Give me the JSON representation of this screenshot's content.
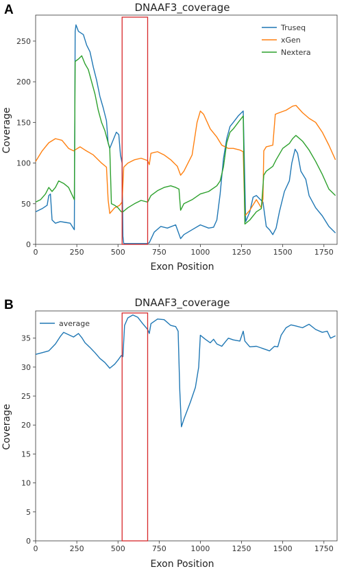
{
  "chart_data": [
    {
      "panel": "A",
      "type": "line",
      "title": "DNAAF3_coverage",
      "xlabel": "Exon Position",
      "ylabel": "Coverage",
      "xlim": [
        0,
        1830
      ],
      "ylim": [
        0,
        282
      ],
      "xticks": [
        0,
        250,
        500,
        750,
        1000,
        1250,
        1500,
        1750
      ],
      "yticks": [
        0,
        50,
        100,
        150,
        200,
        250
      ],
      "legend_position": "top-right",
      "highlight_box": {
        "x": [
          525,
          680
        ],
        "color": "#d62728"
      },
      "series": [
        {
          "name": "Truseq",
          "color": "#1f77b4",
          "points": [
            [
              0,
              40
            ],
            [
              40,
              44
            ],
            [
              70,
              48
            ],
            [
              80,
              60
            ],
            [
              90,
              62
            ],
            [
              100,
              30
            ],
            [
              120,
              26
            ],
            [
              150,
              28
            ],
            [
              180,
              27
            ],
            [
              210,
              26
            ],
            [
              235,
              18
            ],
            [
              240,
              262
            ],
            [
              245,
              270
            ],
            [
              260,
              262
            ],
            [
              290,
              258
            ],
            [
              310,
              245
            ],
            [
              330,
              237
            ],
            [
              350,
              218
            ],
            [
              370,
              202
            ],
            [
              390,
              182
            ],
            [
              410,
              168
            ],
            [
              430,
              152
            ],
            [
              440,
              125
            ],
            [
              450,
              118
            ],
            [
              470,
              128
            ],
            [
              490,
              138
            ],
            [
              505,
              135
            ],
            [
              515,
              110
            ],
            [
              525,
              100
            ],
            [
              530,
              10
            ],
            [
              535,
              1
            ],
            [
              680,
              1
            ],
            [
              690,
              2
            ],
            [
              720,
              15
            ],
            [
              760,
              22
            ],
            [
              800,
              20
            ],
            [
              850,
              24
            ],
            [
              880,
              7
            ],
            [
              900,
              12
            ],
            [
              950,
              18
            ],
            [
              1000,
              24
            ],
            [
              1050,
              20
            ],
            [
              1080,
              21
            ],
            [
              1100,
              30
            ],
            [
              1120,
              62
            ],
            [
              1140,
              105
            ],
            [
              1160,
              130
            ],
            [
              1180,
              145
            ],
            [
              1200,
              150
            ],
            [
              1230,
              158
            ],
            [
              1260,
              164
            ],
            [
              1275,
              28
            ],
            [
              1300,
              40
            ],
            [
              1320,
              58
            ],
            [
              1340,
              60
            ],
            [
              1360,
              56
            ],
            [
              1380,
              52
            ],
            [
              1400,
              22
            ],
            [
              1420,
              18
            ],
            [
              1440,
              12
            ],
            [
              1460,
              20
            ],
            [
              1480,
              40
            ],
            [
              1510,
              65
            ],
            [
              1540,
              78
            ],
            [
              1555,
              100
            ],
            [
              1575,
              117
            ],
            [
              1590,
              112
            ],
            [
              1610,
              90
            ],
            [
              1640,
              80
            ],
            [
              1660,
              60
            ],
            [
              1700,
              45
            ],
            [
              1740,
              35
            ],
            [
              1780,
              22
            ],
            [
              1820,
              14
            ]
          ]
        },
        {
          "name": "xGen",
          "color": "#ff7f0e",
          "points": [
            [
              0,
              102
            ],
            [
              40,
              115
            ],
            [
              80,
              125
            ],
            [
              120,
              130
            ],
            [
              160,
              128
            ],
            [
              200,
              118
            ],
            [
              230,
              115
            ],
            [
              270,
              120
            ],
            [
              300,
              116
            ],
            [
              350,
              110
            ],
            [
              400,
              100
            ],
            [
              430,
              95
            ],
            [
              440,
              55
            ],
            [
              450,
              38
            ],
            [
              480,
              45
            ],
            [
              510,
              48
            ],
            [
              525,
              52
            ],
            [
              535,
              95
            ],
            [
              560,
              100
            ],
            [
              600,
              104
            ],
            [
              640,
              106
            ],
            [
              680,
              103
            ],
            [
              690,
              98
            ],
            [
              700,
              112
            ],
            [
              740,
              114
            ],
            [
              780,
              110
            ],
            [
              820,
              104
            ],
            [
              860,
              96
            ],
            [
              880,
              85
            ],
            [
              900,
              90
            ],
            [
              950,
              110
            ],
            [
              980,
              150
            ],
            [
              1000,
              164
            ],
            [
              1020,
              160
            ],
            [
              1060,
              142
            ],
            [
              1100,
              132
            ],
            [
              1130,
              122
            ],
            [
              1150,
              120
            ],
            [
              1170,
              118
            ],
            [
              1200,
              118
            ],
            [
              1240,
              116
            ],
            [
              1260,
              114
            ],
            [
              1270,
              35
            ],
            [
              1300,
              42
            ],
            [
              1340,
              55
            ],
            [
              1370,
              45
            ],
            [
              1380,
              56
            ],
            [
              1385,
              115
            ],
            [
              1400,
              120
            ],
            [
              1440,
              122
            ],
            [
              1455,
              160
            ],
            [
              1480,
              162
            ],
            [
              1520,
              165
            ],
            [
              1560,
              170
            ],
            [
              1580,
              171
            ],
            [
              1620,
              162
            ],
            [
              1660,
              155
            ],
            [
              1700,
              150
            ],
            [
              1740,
              138
            ],
            [
              1780,
              122
            ],
            [
              1820,
              104
            ]
          ]
        },
        {
          "name": "Nextera",
          "color": "#2ca02c",
          "points": [
            [
              0,
              52
            ],
            [
              30,
              55
            ],
            [
              60,
              62
            ],
            [
              80,
              70
            ],
            [
              100,
              65
            ],
            [
              120,
              70
            ],
            [
              140,
              78
            ],
            [
              170,
              75
            ],
            [
              200,
              70
            ],
            [
              235,
              55
            ],
            [
              240,
              225
            ],
            [
              260,
              228
            ],
            [
              280,
              232
            ],
            [
              300,
              222
            ],
            [
              320,
              215
            ],
            [
              340,
              200
            ],
            [
              360,
              185
            ],
            [
              380,
              165
            ],
            [
              400,
              150
            ],
            [
              420,
              140
            ],
            [
              440,
              125
            ],
            [
              450,
              118
            ],
            [
              460,
              50
            ],
            [
              480,
              48
            ],
            [
              500,
              45
            ],
            [
              520,
              40
            ],
            [
              530,
              40
            ],
            [
              560,
              45
            ],
            [
              600,
              50
            ],
            [
              640,
              54
            ],
            [
              680,
              52
            ],
            [
              700,
              60
            ],
            [
              740,
              66
            ],
            [
              780,
              70
            ],
            [
              820,
              72
            ],
            [
              850,
              70
            ],
            [
              870,
              68
            ],
            [
              880,
              42
            ],
            [
              900,
              50
            ],
            [
              950,
              55
            ],
            [
              1000,
              62
            ],
            [
              1050,
              65
            ],
            [
              1100,
              72
            ],
            [
              1120,
              78
            ],
            [
              1140,
              95
            ],
            [
              1160,
              125
            ],
            [
              1180,
              138
            ],
            [
              1200,
              142
            ],
            [
              1230,
              150
            ],
            [
              1260,
              158
            ],
            [
              1270,
              25
            ],
            [
              1300,
              30
            ],
            [
              1340,
              40
            ],
            [
              1370,
              44
            ],
            [
              1385,
              85
            ],
            [
              1400,
              90
            ],
            [
              1440,
              96
            ],
            [
              1460,
              104
            ],
            [
              1500,
              118
            ],
            [
              1540,
              124
            ],
            [
              1560,
              130
            ],
            [
              1580,
              134
            ],
            [
              1620,
              127
            ],
            [
              1660,
              116
            ],
            [
              1700,
              102
            ],
            [
              1740,
              86
            ],
            [
              1780,
              68
            ],
            [
              1820,
              60
            ]
          ]
        }
      ]
    },
    {
      "panel": "B",
      "type": "line",
      "title": "DNAAF3_coverage",
      "xlabel": "Exon Position",
      "ylabel": "Coverage",
      "xlim": [
        0,
        1830
      ],
      "ylim": [
        0,
        39.7
      ],
      "xticks": [
        0,
        250,
        500,
        750,
        1000,
        1250,
        1500,
        1750
      ],
      "yticks": [
        0,
        5,
        10,
        15,
        20,
        25,
        30,
        35
      ],
      "legend_position": "top-left",
      "highlight_box": {
        "x": [
          525,
          680
        ],
        "color": "#d62728"
      },
      "series": [
        {
          "name": "average",
          "color": "#1f77b4",
          "points": [
            [
              0,
              32.2
            ],
            [
              40,
              32.5
            ],
            [
              80,
              32.8
            ],
            [
              120,
              34
            ],
            [
              150,
              35.3
            ],
            [
              170,
              36
            ],
            [
              200,
              35.6
            ],
            [
              230,
              35.2
            ],
            [
              260,
              35.8
            ],
            [
              280,
              35.1
            ],
            [
              300,
              34.2
            ],
            [
              330,
              33.4
            ],
            [
              360,
              32.5
            ],
            [
              390,
              31.5
            ],
            [
              420,
              30.8
            ],
            [
              450,
              29.8
            ],
            [
              480,
              30.5
            ],
            [
              500,
              31.2
            ],
            [
              520,
              32
            ],
            [
              530,
              31.8
            ],
            [
              540,
              37.2
            ],
            [
              560,
              38.5
            ],
            [
              590,
              39
            ],
            [
              620,
              38.6
            ],
            [
              650,
              37.5
            ],
            [
              680,
              36.5
            ],
            [
              690,
              35.8
            ],
            [
              700,
              37.5
            ],
            [
              740,
              38.3
            ],
            [
              780,
              38.2
            ],
            [
              820,
              37.2
            ],
            [
              850,
              37
            ],
            [
              865,
              36.2
            ],
            [
              875,
              26
            ],
            [
              885,
              19.7
            ],
            [
              900,
              21
            ],
            [
              940,
              24
            ],
            [
              970,
              26.5
            ],
            [
              990,
              30
            ],
            [
              1000,
              35.5
            ],
            [
              1030,
              34.8
            ],
            [
              1060,
              34.2
            ],
            [
              1080,
              34.8
            ],
            [
              1100,
              34
            ],
            [
              1130,
              33.6
            ],
            [
              1150,
              34.3
            ],
            [
              1170,
              35
            ],
            [
              1200,
              34.7
            ],
            [
              1240,
              34.5
            ],
            [
              1260,
              36.2
            ],
            [
              1270,
              34.5
            ],
            [
              1300,
              33.5
            ],
            [
              1340,
              33.6
            ],
            [
              1380,
              33.2
            ],
            [
              1420,
              32.8
            ],
            [
              1450,
              33.6
            ],
            [
              1470,
              33.5
            ],
            [
              1490,
              35.5
            ],
            [
              1520,
              36.8
            ],
            [
              1550,
              37.3
            ],
            [
              1580,
              37.1
            ],
            [
              1620,
              36.8
            ],
            [
              1660,
              37.4
            ],
            [
              1700,
              36.5
            ],
            [
              1740,
              36
            ],
            [
              1770,
              36.2
            ],
            [
              1790,
              35
            ],
            [
              1820,
              35.4
            ]
          ]
        }
      ]
    }
  ]
}
